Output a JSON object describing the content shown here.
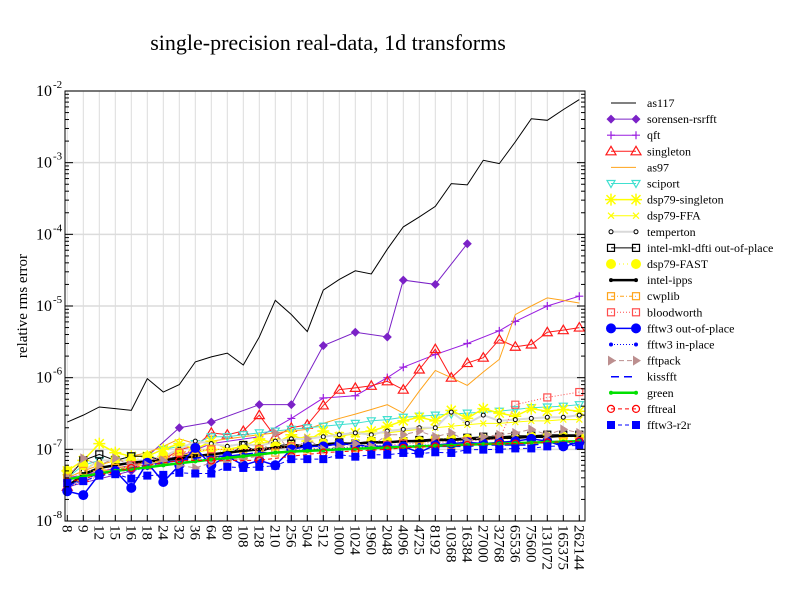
{
  "chart_data": {
    "type": "line",
    "title": "single-precision real-data, 1d transforms",
    "xlabel": "",
    "ylabel": "relative rms error",
    "yscale": "log",
    "ylim": [
      1e-08,
      0.01
    ],
    "yticks": [
      {
        "base": "10",
        "exp": "-8",
        "value": 1e-08
      },
      {
        "base": "10",
        "exp": "-7",
        "value": 1e-07
      },
      {
        "base": "10",
        "exp": "-6",
        "value": 1e-06
      },
      {
        "base": "10",
        "exp": "-5",
        "value": 1e-05
      },
      {
        "base": "10",
        "exp": "-4",
        "value": 0.0001
      },
      {
        "base": "10",
        "exp": "-3",
        "value": 0.001
      },
      {
        "base": "10",
        "exp": "-2",
        "value": 0.01
      }
    ],
    "grid": true,
    "legend_position": "right",
    "categories": [
      "8",
      "9",
      "12",
      "15",
      "16",
      "18",
      "24",
      "32",
      "36",
      "64",
      "80",
      "108",
      "128",
      "210",
      "256",
      "504",
      "512",
      "1000",
      "1024",
      "1960",
      "2048",
      "4096",
      "4725",
      "8192",
      "10368",
      "16384",
      "27000",
      "32768",
      "65536",
      "75600",
      "131072",
      "165375",
      "262144"
    ],
    "series": [
      {
        "name": "as117",
        "color": "#000000",
        "marker": "none",
        "dash": "",
        "width": 1,
        "values": [
          2.4e-07,
          3e-07,
          3.9e-07,
          3.7e-07,
          3.5e-07,
          9.7e-07,
          6.3e-07,
          8e-07,
          1.66e-06,
          1.95e-06,
          2.2e-06,
          1.5e-06,
          3.7e-06,
          1.2e-05,
          7.6e-06,
          4.4e-06,
          1.67e-05,
          2.35e-05,
          3.1e-05,
          2.8e-05,
          6.2e-05,
          0.000127,
          0.000175,
          0.000245,
          0.00051,
          0.00049,
          0.00108,
          0.00097,
          0.00195,
          0.0041,
          0.0039,
          0.0055,
          0.0076
        ]
      },
      {
        "name": "sorensen-rsrfft",
        "color": "#7b22c7",
        "marker": "diamond",
        "dash": "",
        "width": 1,
        "values": [
          3e-08,
          null,
          null,
          null,
          5e-08,
          null,
          null,
          2e-07,
          null,
          2.4e-07,
          null,
          null,
          4.2e-07,
          null,
          4.2e-07,
          null,
          2.8e-06,
          null,
          4.3e-06,
          null,
          3.7e-06,
          2.3e-05,
          null,
          2e-05,
          null,
          7.4e-05,
          null,
          null,
          null,
          null,
          null,
          null,
          null
        ]
      },
      {
        "name": "qft",
        "color": "#9a1fe0",
        "marker": "plus",
        "dash": "",
        "width": 1,
        "values": [
          4e-08,
          null,
          null,
          null,
          6e-08,
          null,
          null,
          8e-08,
          null,
          1.2e-07,
          null,
          null,
          1.5e-07,
          null,
          2.7e-07,
          null,
          5.2e-07,
          null,
          5.6e-07,
          null,
          1e-06,
          1.4e-06,
          null,
          2.1e-06,
          null,
          3e-06,
          null,
          4.5e-06,
          6.1e-06,
          null,
          1e-05,
          null,
          1.37e-05
        ]
      },
      {
        "name": "singleton",
        "color": "#ff1a1a",
        "marker": "triangle",
        "dash": "",
        "width": 1,
        "values": [
          3e-08,
          4e-08,
          5e-08,
          5e-08,
          6e-08,
          6e-08,
          7e-08,
          1e-07,
          1.1e-07,
          1.7e-07,
          1.6e-07,
          1.8e-07,
          3e-07,
          1.5e-07,
          2e-07,
          2.2e-07,
          4.1e-07,
          6.8e-07,
          7.2e-07,
          7.7e-07,
          8.9e-07,
          6.8e-07,
          1.3e-06,
          2.5e-06,
          1e-06,
          1.6e-06,
          1.9e-06,
          3.4e-06,
          2.7e-06,
          2.9e-06,
          4.3e-06,
          4.6e-06,
          5e-06
        ]
      },
      {
        "name": "as97",
        "color": "#ffa31a",
        "marker": "none",
        "dash": "",
        "width": 1,
        "values": [
          4e-08,
          5e-08,
          6e-08,
          7e-08,
          8e-08,
          9e-08,
          1.1e-07,
          1.4e-07,
          1.2e-07,
          1.3e-07,
          1.4e-07,
          1.5e-07,
          1.6e-07,
          1.7e-07,
          1.8e-07,
          1.9e-07,
          2.3e-07,
          2.7e-07,
          3.1e-07,
          3.6e-07,
          4.2e-07,
          3.2e-07,
          6.5e-07,
          1.26e-06,
          1e-06,
          7.8e-07,
          1.2e-06,
          1.8e-06,
          7.6e-06,
          1e-05,
          1.3e-05,
          1.2e-05,
          1.1e-05
        ]
      },
      {
        "name": "sciport",
        "color": "#40e0d0",
        "marker": "triangle-down",
        "dash": "",
        "width": 1,
        "values": [
          4e-08,
          6e-08,
          7e-08,
          7e-08,
          8e-08,
          8e-08,
          1e-07,
          1.1e-07,
          1.2e-07,
          1.5e-07,
          1.5e-07,
          1.6e-07,
          1.7e-07,
          1.8e-07,
          1.9e-07,
          2e-07,
          2.1e-07,
          2.2e-07,
          2.3e-07,
          2.5e-07,
          2.6e-07,
          2.8e-07,
          2.9e-07,
          3e-07,
          3.1e-07,
          3.2e-07,
          3.3e-07,
          3.4e-07,
          3.6e-07,
          3.8e-07,
          3.9e-07,
          4e-07,
          4.2e-07
        ]
      },
      {
        "name": "dsp79-singleton",
        "color": "#ffff00",
        "marker": "asterisk",
        "dash": "",
        "width": 1.5,
        "values": [
          5e-08,
          7e-08,
          1.2e-07,
          9e-08,
          8e-08,
          8e-08,
          1e-07,
          1.2e-07,
          1e-07,
          1.3e-07,
          1e-07,
          1.1e-07,
          1.4e-07,
          1.2e-07,
          1.6e-07,
          1.3e-07,
          1.8e-07,
          1.5e-07,
          1.7e-07,
          1.8e-07,
          2.1e-07,
          2.5e-07,
          2.8e-07,
          2.5e-07,
          3.5e-07,
          2.7e-07,
          3.7e-07,
          3.2e-07,
          2.9e-07,
          3.7e-07,
          3.4e-07,
          3.6e-07,
          3.4e-07
        ]
      },
      {
        "name": "dsp79-FFA",
        "color": "#ffff00",
        "marker": "x",
        "dash": "",
        "width": 1,
        "values": [
          3e-08,
          4e-08,
          5e-08,
          5e-08,
          6e-08,
          6e-08,
          7e-08,
          8e-08,
          9e-08,
          1e-07,
          1e-07,
          1.1e-07,
          1.2e-07,
          1.3e-07,
          1.4e-07,
          1.5e-07,
          1.5e-07,
          1.6e-07,
          1.6e-07,
          1.7e-07,
          1.7e-07,
          1.8e-07,
          1.9e-07,
          2e-07,
          2.1e-07,
          2.2e-07,
          2.3e-07,
          2.3e-07,
          2.4e-07,
          2.5e-07,
          2.5e-07,
          2.6e-07,
          2.6e-07
        ]
      },
      {
        "name": "temperton",
        "color": "#d9d9d9",
        "marker": "small-circle",
        "dash": "",
        "width": 2,
        "values": [
          3e-08,
          5e-08,
          7e-08,
          7e-08,
          7e-08,
          7e-08,
          8e-08,
          1e-07,
          1.3e-07,
          1.2e-07,
          1.1e-07,
          1.2e-07,
          1.1e-07,
          1.3e-07,
          1.4e-07,
          1.4e-07,
          1.5e-07,
          1.6e-07,
          1.7e-07,
          1.6e-07,
          1.8e-07,
          1.9e-07,
          2e-07,
          2e-07,
          3.3e-07,
          2.3e-07,
          3e-07,
          2.5e-07,
          2.6e-07,
          2.7e-07,
          2.8e-07,
          2.8e-07,
          3e-07
        ]
      },
      {
        "name": "intel-mkl-dfti out-of-place",
        "color": "#000000",
        "marker": "square-open",
        "dash": "",
        "width": 1,
        "values": [
          4e-08,
          7e-08,
          8.5e-08,
          7e-08,
          8e-08,
          8e-08,
          7e-08,
          8e-08,
          8.5e-08,
          8e-08,
          8e-08,
          1.15e-07,
          9e-08,
          1.1e-07,
          1.2e-07,
          1.1e-07,
          1.2e-07,
          1.25e-07,
          1.2e-07,
          1.3e-07,
          1.25e-07,
          1.3e-07,
          1.35e-07,
          1.4e-07,
          1.4e-07,
          1.45e-07,
          1.5e-07,
          1.5e-07,
          1.55e-07,
          1.55e-07,
          1.6e-07,
          1.6e-07,
          1.6e-07
        ]
      },
      {
        "name": "dsp79-FAST",
        "color": "#ffff00",
        "marker": "big-dot",
        "dash": "1,3",
        "width": 1,
        "values": [
          5e-08,
          6e-08,
          6e-08,
          7e-08,
          7e-08,
          8e-08,
          8e-08,
          9e-08,
          1e-07,
          1e-07,
          9e-08,
          1e-07,
          1e-07,
          1.1e-07,
          1.1e-07,
          1.1e-07,
          1.2e-07,
          1.2e-07,
          1.2e-07,
          1.3e-07,
          1.3e-07,
          1.3e-07,
          1.3e-07,
          1.4e-07,
          1.4e-07,
          1.4e-07,
          1.4e-07,
          1.4e-07,
          1.4e-07,
          1.5e-07,
          1.5e-07,
          1.5e-07,
          1.5e-07
        ]
      },
      {
        "name": "intel-ipps",
        "color": "#000000",
        "marker": "dot",
        "dash": "",
        "width": 2.5,
        "values": [
          3e-08,
          4.5e-08,
          5.5e-08,
          6e-08,
          6.5e-08,
          6.8e-08,
          7e-08,
          7.5e-08,
          8e-08,
          8.5e-08,
          9e-08,
          9.5e-08,
          1e-07,
          1.05e-07,
          1.1e-07,
          1.1e-07,
          1.15e-07,
          1.2e-07,
          1.2e-07,
          1.25e-07,
          1.25e-07,
          1.3e-07,
          1.3e-07,
          1.35e-07,
          1.35e-07,
          1.4e-07,
          1.4e-07,
          1.45e-07,
          1.45e-07,
          1.5e-07,
          1.5e-07,
          1.55e-07,
          1.55e-07
        ]
      },
      {
        "name": "cwplib",
        "color": "#ffa31a",
        "marker": "square-open",
        "dash": "4,2,1,2",
        "width": 1,
        "values": [
          4e-08,
          5e-08,
          5e-08,
          5.5e-08,
          6e-08,
          6.5e-08,
          7e-08,
          9e-08,
          8e-08,
          8e-08,
          7e-08,
          8e-08,
          8e-08,
          9e-08,
          9e-08,
          1e-07,
          1e-07,
          1e-07,
          1.05e-07,
          1.05e-07,
          1.1e-07,
          1.1e-07,
          1.1e-07,
          1.15e-07,
          1.15e-07,
          1.2e-07,
          1.2e-07,
          1.2e-07,
          1.25e-07,
          1.25e-07,
          1.3e-07,
          1.3e-07,
          1.3e-07
        ]
      },
      {
        "name": "bloodworth",
        "color": "#ff4d4d",
        "marker": "square-open",
        "dash": "1,2",
        "width": 1,
        "values": [
          3e-08,
          null,
          null,
          null,
          6e-08,
          null,
          null,
          9e-08,
          null,
          1e-07,
          null,
          null,
          1e-07,
          null,
          1.1e-07,
          null,
          1e-07,
          null,
          1.1e-07,
          null,
          1.15e-07,
          1.2e-07,
          null,
          1.25e-07,
          null,
          1.3e-07,
          null,
          1.4e-07,
          4.2e-07,
          null,
          5.3e-07,
          null,
          6.3e-07
        ]
      },
      {
        "name": "fftw3 out-of-place",
        "color": "#0000ff",
        "marker": "big-circle",
        "dash": "",
        "width": 1.5,
        "values": [
          2.6e-08,
          2.3e-08,
          4.5e-08,
          5e-08,
          2.9e-08,
          6.5e-08,
          3.5e-08,
          6e-08,
          1.05e-07,
          6e-08,
          8e-08,
          6e-08,
          7e-08,
          6e-08,
          1e-07,
          1.1e-07,
          1.1e-07,
          1.2e-07,
          1.15e-07,
          1.1e-07,
          1.1e-07,
          1.1e-07,
          9e-08,
          1.15e-07,
          1.2e-07,
          1.25e-07,
          1.2e-07,
          1.25e-07,
          1.3e-07,
          1.4e-07,
          1.3e-07,
          1.1e-07,
          1.25e-07
        ]
      },
      {
        "name": "fftw3 in-place",
        "color": "#0000ff",
        "marker": "dot",
        "dash": "1,2",
        "width": 1,
        "values": [
          2.8e-08,
          3.8e-08,
          4.5e-08,
          5e-08,
          5e-08,
          5.5e-08,
          6e-08,
          6.5e-08,
          7e-08,
          7.5e-08,
          8e-08,
          8.5e-08,
          9e-08,
          9e-08,
          9.5e-08,
          1e-07,
          1e-07,
          1.05e-07,
          1.05e-07,
          1.1e-07,
          1.1e-07,
          1.1e-07,
          1.15e-07,
          1.15e-07,
          1.15e-07,
          1.2e-07,
          1.2e-07,
          1.2e-07,
          1.2e-07,
          1.25e-07,
          1.25e-07,
          1.25e-07,
          1.25e-07
        ]
      },
      {
        "name": "fftpack",
        "color": "#bc8f8f",
        "marker": "triangle-right",
        "dash": "5,3",
        "width": 1,
        "values": [
          4e-08,
          7.5e-08,
          6e-08,
          7.5e-08,
          6e-08,
          6e-08,
          7e-08,
          6e-08,
          5.5e-08,
          6.5e-08,
          7e-08,
          7.5e-08,
          8e-08,
          1.7e-07,
          9e-08,
          1.4e-07,
          1e-07,
          1.1e-07,
          1.2e-07,
          1.1e-07,
          1.6e-07,
          1.6e-07,
          1.8e-07,
          1.5e-07,
          1.7e-07,
          1.3e-07,
          1.5e-07,
          1.6e-07,
          1.7e-07,
          1.9e-07,
          1.6e-07,
          1.9e-07,
          1.7e-07
        ]
      },
      {
        "name": "kissfft",
        "color": "#0000ff",
        "marker": "none",
        "dash": "8,5",
        "width": 1.5,
        "values": [
          3e-08,
          4e-08,
          4.5e-08,
          5e-08,
          5.5e-08,
          6e-08,
          6.5e-08,
          7e-08,
          7.5e-08,
          8e-08,
          8e-08,
          8.5e-08,
          9e-08,
          9e-08,
          9.5e-08,
          9.5e-08,
          1e-07,
          1e-07,
          1e-07,
          1.05e-07,
          1.05e-07,
          1.05e-07,
          1.1e-07,
          1.1e-07,
          1.1e-07,
          1.1e-07,
          1.15e-07,
          1.15e-07,
          1.15e-07,
          1.15e-07,
          1.2e-07,
          1.2e-07,
          1.2e-07
        ]
      },
      {
        "name": "green",
        "color": "#00e000",
        "marker": "dot",
        "dash": "",
        "width": 2.5,
        "values": [
          3.8e-08,
          4.2e-08,
          4.6e-08,
          5e-08,
          5.3e-08,
          5.6e-08,
          6e-08,
          6.4e-08,
          6.8e-08,
          7.2e-08,
          7.6e-08,
          8e-08,
          8.5e-08,
          9e-08,
          9.3e-08,
          9.5e-08,
          9.7e-08,
          1e-07,
          1.02e-07,
          1.04e-07,
          1.06e-07,
          1.08e-07,
          1.1e-07,
          1.12e-07,
          1.14e-07,
          1.16e-07,
          1.18e-07,
          1.2e-07,
          1.22e-07,
          1.24e-07,
          1.26e-07,
          1.28e-07,
          1.3e-07
        ]
      },
      {
        "name": "fftreal",
        "color": "#ff0000",
        "marker": "circle-open",
        "dash": "4,3",
        "width": 1,
        "values": [
          3.5e-08,
          null,
          null,
          null,
          5.5e-08,
          null,
          null,
          7e-08,
          null,
          7e-08,
          null,
          null,
          7e-08,
          null,
          8e-08,
          null,
          9e-08,
          null,
          9.5e-08,
          null,
          1e-07,
          1.05e-07,
          null,
          1.1e-07,
          null,
          1.15e-07,
          null,
          1.2e-07,
          1.2e-07,
          null,
          1.25e-07,
          null,
          1.3e-07
        ]
      },
      {
        "name": "fftw3-r2r",
        "color": "#0000ff",
        "marker": "square-filled",
        "dash": "4,3",
        "width": 1,
        "values": [
          3.4e-08,
          3.6e-08,
          4.3e-08,
          4.5e-08,
          3.9e-08,
          4.3e-08,
          4.4e-08,
          4.7e-08,
          4.6e-08,
          4.6e-08,
          5.7e-08,
          5.5e-08,
          5.7e-08,
          5.9e-08,
          7.3e-08,
          7.3e-08,
          7.3e-08,
          8.4e-08,
          7.9e-08,
          8.4e-08,
          8.4e-08,
          8.9e-08,
          8.7e-08,
          9.1e-08,
          8.9e-08,
          9.9e-08,
          9.9e-08,
          1e-07,
          1.03e-07,
          1.03e-07,
          1.1e-07,
          1.12e-07,
          1.13e-07
        ]
      }
    ]
  }
}
